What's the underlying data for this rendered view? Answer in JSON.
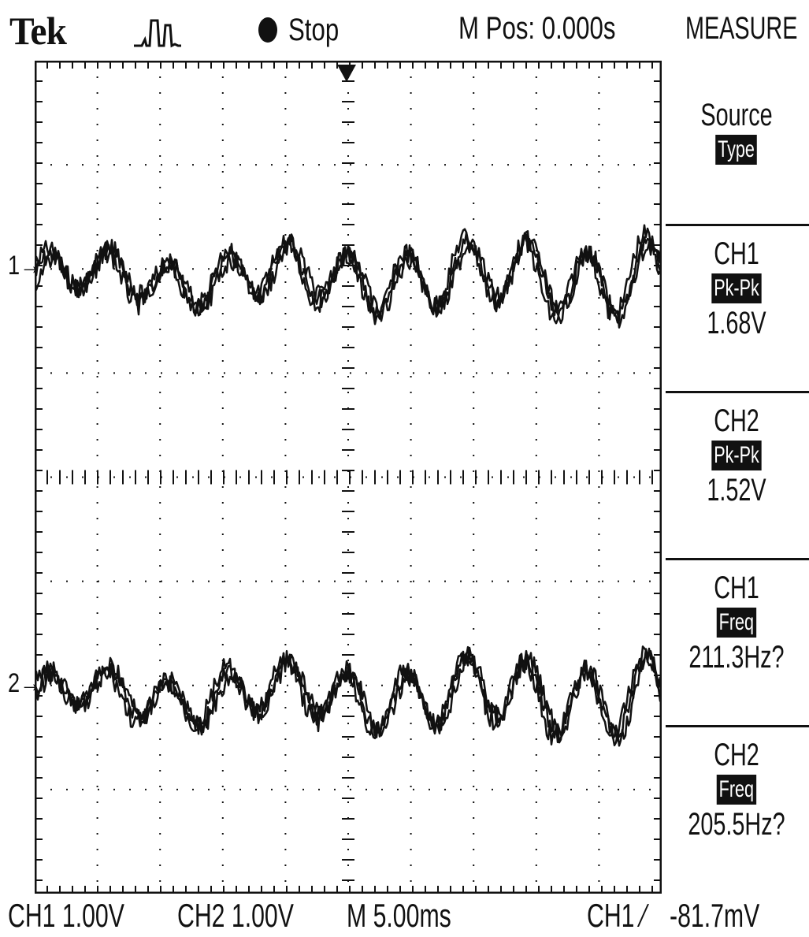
{
  "header": {
    "brand": "Tek",
    "acquire_icon": "single-pulse-waveform-icon",
    "run_state": "Stop",
    "horizontal_position": "M Pos: 0.000s",
    "menu_title": "MEASURE"
  },
  "side_menu": {
    "source": {
      "label": "Source",
      "button": "Type"
    },
    "measurements": [
      {
        "channel": "CH1",
        "type": "Pk-Pk",
        "value": "1.68V"
      },
      {
        "channel": "CH2",
        "type": "Pk-Pk",
        "value": "1.52V"
      },
      {
        "channel": "CH1",
        "type": "Freq",
        "value": "211.3Hz?"
      },
      {
        "channel": "CH2",
        "type": "Freq",
        "value": "205.5Hz?"
      }
    ]
  },
  "channel_markers": {
    "ch1": "1",
    "ch2": "2"
  },
  "footer": {
    "ch1_scale": "CH1  1.00V",
    "ch2_scale": "CH2  1.00V",
    "timebase": "M 5.00ms",
    "trigger_source": "CH1",
    "trigger_slope_icon": "rising-edge-icon",
    "trigger_level": "-81.7mV"
  },
  "colors": {
    "trace": "#111111",
    "background": "#ffffff"
  }
}
